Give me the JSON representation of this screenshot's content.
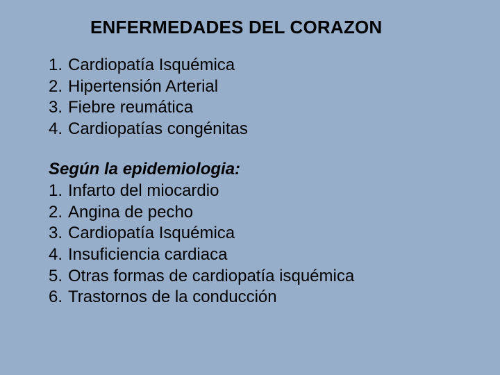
{
  "colors": {
    "background": "#97aecb",
    "text": "#000000"
  },
  "typography": {
    "title_fontsize": 26,
    "title_weight": "bold",
    "body_fontsize": 24,
    "subheading_style": "italic",
    "subheading_weight": "bold",
    "line_height": 1.28,
    "font_family": "Arial"
  },
  "title": "ENFERMEDADES DEL CORAZON",
  "list1": {
    "items": [
      {
        "num": "1.",
        "text": "Cardiopatía Isquémica"
      },
      {
        "num": "2.",
        "text": "Hipertensión Arterial"
      },
      {
        "num": "3.",
        "text": "Fiebre reumática"
      },
      {
        "num": "4.",
        "text": "Cardiopatías congénitas"
      }
    ]
  },
  "subheading": "Según la epidemiologia:",
  "list2": {
    "items": [
      {
        "num": "1.",
        "text": "Infarto del miocardio"
      },
      {
        "num": "2.",
        "text": "Angina de pecho"
      },
      {
        "num": "3.",
        "text": "Cardiopatía Isquémica"
      },
      {
        "num": "4.",
        "text": "Insuficiencia cardiaca"
      },
      {
        "num": "5.",
        "text": "Otras formas de cardiopatía isquémica"
      },
      {
        "num": "6.",
        "text": "Trastornos de la conducción"
      }
    ]
  }
}
